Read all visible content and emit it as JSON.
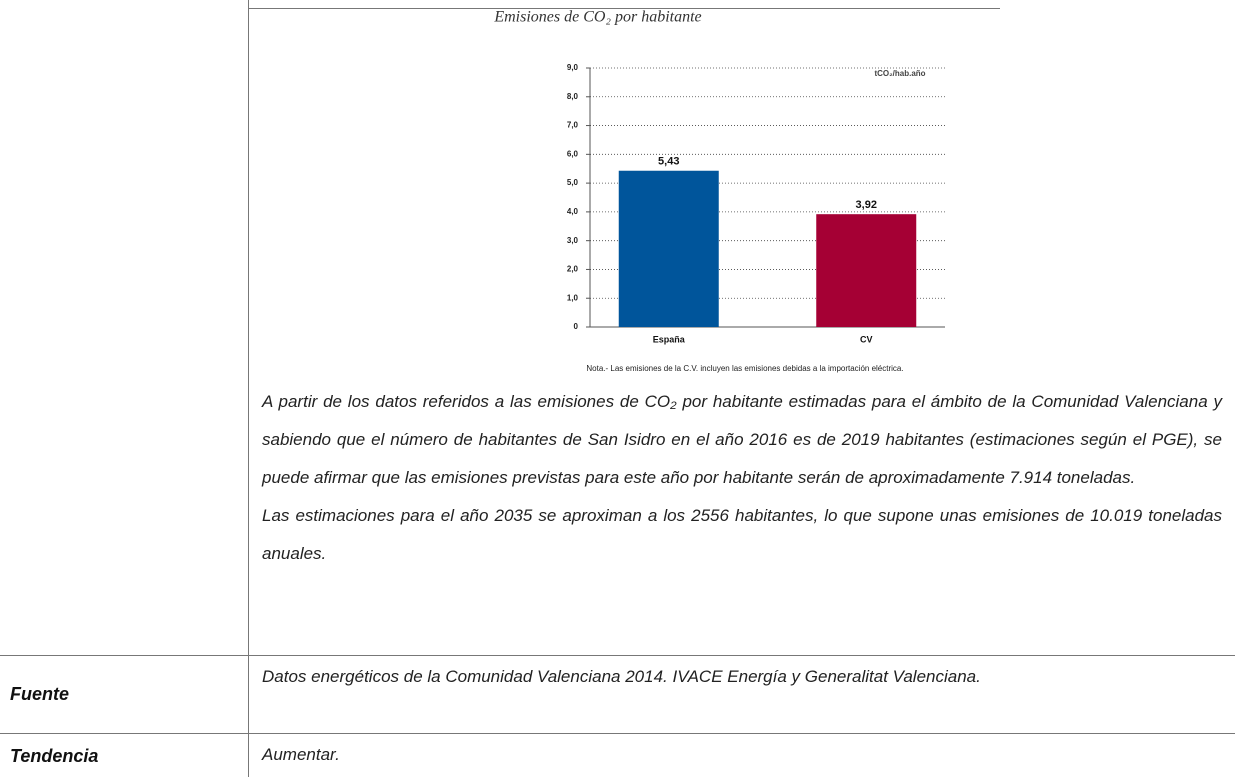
{
  "chart_data": {
    "type": "bar",
    "title": "Emisiones de CO₂ por habitante",
    "unit": "tCO₂/hab.año",
    "categories": [
      "España",
      "CV"
    ],
    "values": [
      5.43,
      3.92
    ],
    "value_labels": [
      "5,43",
      "3,92"
    ],
    "colors": [
      "#00559b",
      "#a50034"
    ],
    "ylim": [
      0,
      9
    ],
    "yticks": [
      0,
      {
        "value": 1,
        "label": "1,0"
      },
      {
        "value": 2,
        "label": "2,0"
      },
      {
        "value": 3,
        "label": "3,0"
      },
      {
        "value": 4,
        "label": "4,0"
      },
      {
        "value": 5,
        "label": "5,0"
      },
      {
        "value": 6,
        "label": "6,0"
      },
      {
        "value": 7,
        "label": "7,0"
      },
      {
        "value": 8,
        "label": "8,0"
      },
      {
        "value": 9,
        "label": "9,0"
      }
    ],
    "grid": true,
    "note": "Nota.- Las emisiones de la C.V. incluyen las emisiones debidas a la importación eléctrica."
  },
  "body": {
    "paragraphs": [
      "A partir de los datos referidos a las emisiones de CO₂ por habitante estimadas para el ámbito de la Comunidad Valenciana y sabiendo que el número de habitantes de San Isidro en el año 2016 es de 2019 habitantes (estimaciones según el PGE), se puede afirmar que las emisiones previstas para este año por habitante serán de aproximadamente 7.914 toneladas.",
      "Las estimaciones para el año 2035 se aproximan a los 2556 habitantes, lo que supone unas emisiones de 10.019 toneladas anuales."
    ]
  },
  "rows": [
    {
      "label": "Fuente",
      "text": "Datos energéticos de la Comunidad Valenciana 2014. IVACE Energía y Generalitat Valenciana."
    },
    {
      "label": "Tendencia",
      "text": "Aumentar."
    }
  ]
}
